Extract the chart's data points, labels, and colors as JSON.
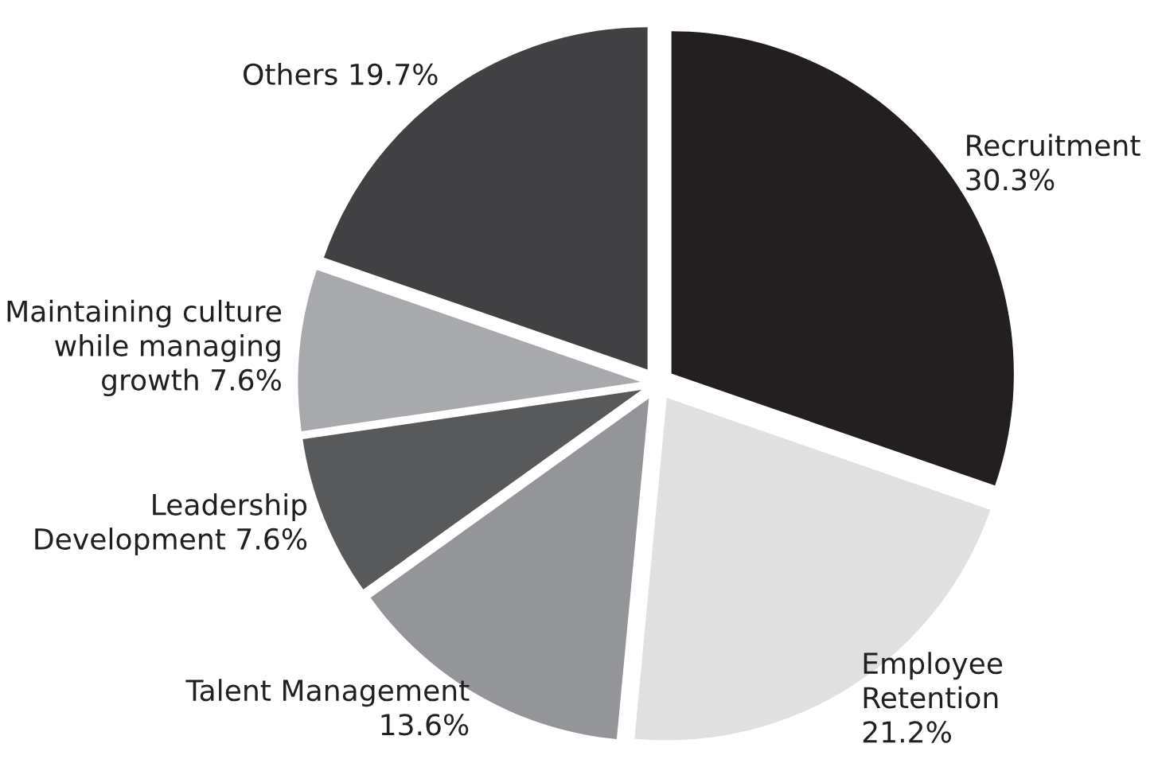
{
  "chart_data": {
    "type": "pie",
    "categories": [
      "Recruitment",
      "Employee Retention",
      "Talent Management",
      "Leadership Development",
      "Maintaining culture while managing growth",
      "Others"
    ],
    "values": [
      30.3,
      21.2,
      13.6,
      7.6,
      7.6,
      19.7
    ],
    "value_labels": [
      "30.3%",
      "21.2%",
      "13.6%",
      "7.6%",
      "7.6%",
      "19.7%"
    ],
    "colors": [
      "#231f20",
      "#e0e0e1",
      "#939598",
      "#58595b",
      "#a7a9ac",
      "#414042"
    ]
  }
}
